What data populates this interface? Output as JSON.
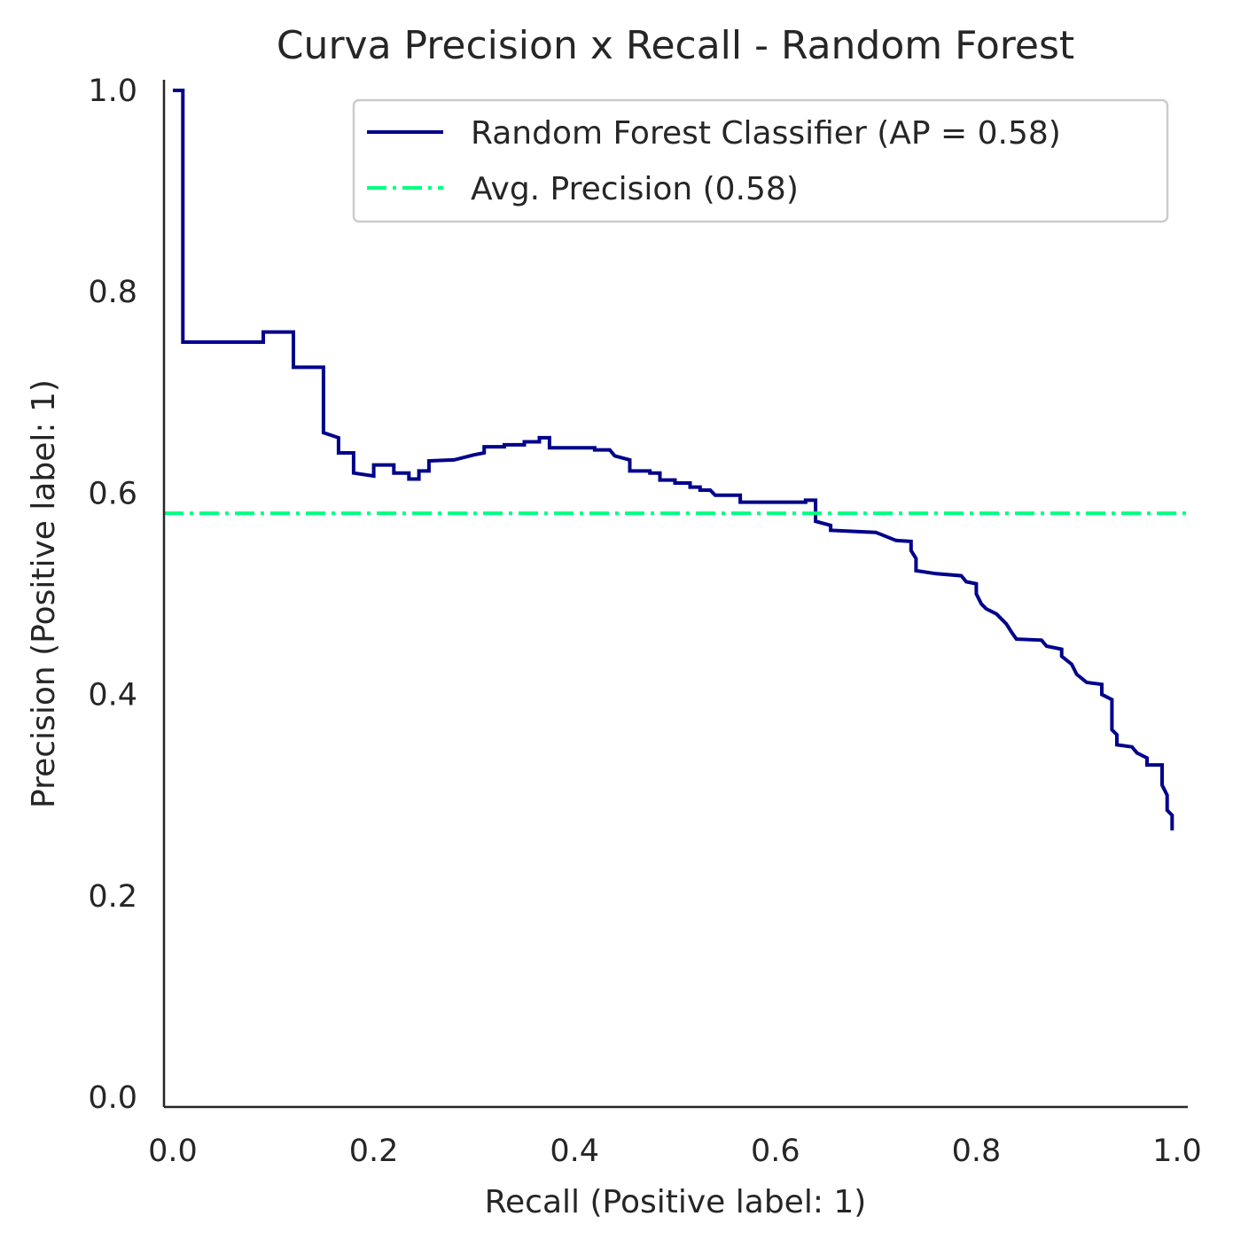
{
  "chart_data": {
    "type": "line",
    "title": "Curva Precision x Recall - Random Forest",
    "xlabel": "Recall (Positive label: 1)",
    "ylabel": "Precision (Positive label: 1)",
    "xlim": [
      0,
      1
    ],
    "ylim": [
      0,
      1
    ],
    "xticks": [
      "0.0",
      "0.2",
      "0.4",
      "0.6",
      "0.8",
      "1.0"
    ],
    "yticks": [
      "0.0",
      "0.2",
      "0.4",
      "0.6",
      "0.8",
      "1.0"
    ],
    "grid": false,
    "legend_position": "top-right",
    "series": [
      {
        "name": "Random Forest Classifier (AP = 0.58)",
        "color": "#00008b",
        "style": "step",
        "points": [
          [
            0.0,
            1.0
          ],
          [
            0.01,
            1.0
          ],
          [
            0.01,
            0.75
          ],
          [
            0.09,
            0.75
          ],
          [
            0.09,
            0.76
          ],
          [
            0.12,
            0.76
          ],
          [
            0.12,
            0.725
          ],
          [
            0.15,
            0.725
          ],
          [
            0.15,
            0.66
          ],
          [
            0.165,
            0.655
          ],
          [
            0.165,
            0.64
          ],
          [
            0.18,
            0.64
          ],
          [
            0.18,
            0.62
          ],
          [
            0.2,
            0.617
          ],
          [
            0.2,
            0.628
          ],
          [
            0.22,
            0.628
          ],
          [
            0.22,
            0.62
          ],
          [
            0.235,
            0.62
          ],
          [
            0.235,
            0.614
          ],
          [
            0.245,
            0.614
          ],
          [
            0.245,
            0.622
          ],
          [
            0.255,
            0.622
          ],
          [
            0.255,
            0.632
          ],
          [
            0.28,
            0.633
          ],
          [
            0.3,
            0.638
          ],
          [
            0.31,
            0.64
          ],
          [
            0.31,
            0.646
          ],
          [
            0.33,
            0.646
          ],
          [
            0.33,
            0.648
          ],
          [
            0.35,
            0.648
          ],
          [
            0.35,
            0.651
          ],
          [
            0.365,
            0.651
          ],
          [
            0.365,
            0.655
          ],
          [
            0.375,
            0.655
          ],
          [
            0.375,
            0.645
          ],
          [
            0.42,
            0.645
          ],
          [
            0.42,
            0.643
          ],
          [
            0.435,
            0.643
          ],
          [
            0.44,
            0.637
          ],
          [
            0.455,
            0.633
          ],
          [
            0.455,
            0.622
          ],
          [
            0.475,
            0.622
          ],
          [
            0.475,
            0.62
          ],
          [
            0.485,
            0.62
          ],
          [
            0.485,
            0.613
          ],
          [
            0.5,
            0.613
          ],
          [
            0.5,
            0.61
          ],
          [
            0.515,
            0.61
          ],
          [
            0.515,
            0.606
          ],
          [
            0.525,
            0.606
          ],
          [
            0.525,
            0.603
          ],
          [
            0.535,
            0.603
          ],
          [
            0.54,
            0.598
          ],
          [
            0.565,
            0.598
          ],
          [
            0.565,
            0.591
          ],
          [
            0.63,
            0.591
          ],
          [
            0.63,
            0.593
          ],
          [
            0.64,
            0.593
          ],
          [
            0.64,
            0.572
          ],
          [
            0.655,
            0.568
          ],
          [
            0.655,
            0.563
          ],
          [
            0.7,
            0.561
          ],
          [
            0.72,
            0.553
          ],
          [
            0.735,
            0.552
          ],
          [
            0.735,
            0.543
          ],
          [
            0.74,
            0.535
          ],
          [
            0.74,
            0.523
          ],
          [
            0.76,
            0.52
          ],
          [
            0.785,
            0.518
          ],
          [
            0.79,
            0.512
          ],
          [
            0.8,
            0.51
          ],
          [
            0.8,
            0.5
          ],
          [
            0.805,
            0.49
          ],
          [
            0.81,
            0.485
          ],
          [
            0.82,
            0.48
          ],
          [
            0.83,
            0.47
          ],
          [
            0.835,
            0.462
          ],
          [
            0.84,
            0.455
          ],
          [
            0.865,
            0.454
          ],
          [
            0.87,
            0.448
          ],
          [
            0.885,
            0.445
          ],
          [
            0.885,
            0.438
          ],
          [
            0.895,
            0.43
          ],
          [
            0.9,
            0.42
          ],
          [
            0.91,
            0.412
          ],
          [
            0.925,
            0.41
          ],
          [
            0.925,
            0.4
          ],
          [
            0.935,
            0.395
          ],
          [
            0.935,
            0.365
          ],
          [
            0.94,
            0.36
          ],
          [
            0.94,
            0.35
          ],
          [
            0.955,
            0.348
          ],
          [
            0.96,
            0.342
          ],
          [
            0.97,
            0.337
          ],
          [
            0.97,
            0.33
          ],
          [
            0.985,
            0.33
          ],
          [
            0.985,
            0.31
          ],
          [
            0.99,
            0.3
          ],
          [
            0.99,
            0.285
          ],
          [
            0.995,
            0.28
          ],
          [
            0.995,
            0.265
          ]
        ]
      },
      {
        "name": "Avg. Precision (0.58)",
        "color": "#00ff80",
        "style": "dashdot",
        "points": [
          [
            0.0,
            0.58
          ],
          [
            1.0,
            0.58
          ]
        ]
      }
    ]
  }
}
